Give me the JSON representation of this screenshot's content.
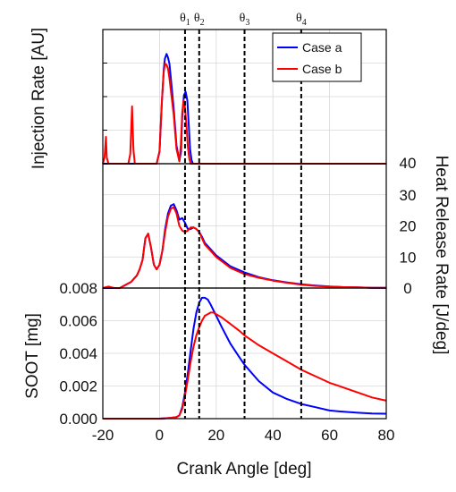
{
  "chart_data": [
    {
      "type": "line",
      "panel": "top",
      "ylabel": "Injection Rate [AU]",
      "y_axis_side": "left",
      "y_tick_labels_shown": false,
      "ylim": [
        0,
        1.1
      ],
      "xlim": [
        -20,
        80
      ],
      "grid": true,
      "legend": {
        "placement": "top-right",
        "entries": [
          "Case a",
          "Case b"
        ]
      },
      "series": [
        {
          "name": "Case a",
          "color": "#0000ff",
          "x": [
            -20,
            -19.4,
            -18.9,
            -18.6,
            -18,
            -17,
            -11,
            -10.3,
            -9.7,
            -9.2,
            -8.7,
            -8,
            -1,
            0,
            0.8,
            1.5,
            1.9,
            2.5,
            3,
            3.5,
            4,
            5,
            6,
            7,
            7.6,
            8,
            8.6,
            9.2,
            9.8,
            10.3,
            10.8,
            11.3,
            11.8,
            12,
            80
          ],
          "y": [
            0,
            0,
            0,
            0,
            0,
            0,
            0,
            0,
            0,
            0,
            0,
            0,
            0,
            0.1,
            0.48,
            0.78,
            0.86,
            0.9,
            0.87,
            0.82,
            0.7,
            0.45,
            0.15,
            0.02,
            0.1,
            0.38,
            0.56,
            0.59,
            0.52,
            0.32,
            0.12,
            0.03,
            0,
            0,
            0
          ]
        },
        {
          "name": "Case b",
          "color": "#ff0000",
          "x": [
            -20,
            -19.4,
            -18.9,
            -18.6,
            -18,
            -17,
            -11,
            -10.3,
            -9.7,
            -9.2,
            -8.7,
            -8,
            -1,
            0,
            0.8,
            1.5,
            2,
            2.5,
            3,
            3.5,
            4,
            5,
            6,
            7,
            7.5,
            8,
            8.5,
            9,
            9.5,
            10,
            10.5,
            11,
            80
          ],
          "y": [
            0,
            0.05,
            0.22,
            0.05,
            0,
            0,
            0,
            0.08,
            0.47,
            0.12,
            0,
            0,
            0,
            0.1,
            0.5,
            0.76,
            0.82,
            0.81,
            0.78,
            0.7,
            0.6,
            0.4,
            0.12,
            0.02,
            0.15,
            0.42,
            0.52,
            0.46,
            0.32,
            0.14,
            0.04,
            0,
            0
          ]
        }
      ]
    },
    {
      "type": "line",
      "panel": "middle",
      "ylabel": "Heat Release Rate [J/deg]",
      "y_axis_side": "right",
      "ylim": [
        0,
        40
      ],
      "yticks": [
        0,
        10,
        20,
        30,
        40
      ],
      "xlim": [
        -20,
        80
      ],
      "grid": true,
      "series": [
        {
          "name": "Case a",
          "color": "#0000ff",
          "x": [
            -20,
            -18,
            -16,
            -14,
            -12,
            -10,
            -8,
            -7,
            -6,
            -5,
            -4,
            -3,
            -2,
            -1,
            0,
            1,
            2,
            3,
            4,
            5,
            6,
            7,
            8,
            9,
            10,
            11,
            12,
            13,
            14,
            15,
            16,
            18,
            20,
            25,
            30,
            35,
            40,
            45,
            50,
            55,
            60,
            65,
            70,
            75,
            80
          ],
          "y": [
            0,
            0,
            0,
            0,
            1,
            2,
            4,
            6,
            9,
            16,
            17.5,
            13,
            7.5,
            6,
            7.5,
            12,
            19,
            24,
            26.5,
            27,
            25,
            22,
            22.5,
            21,
            19,
            19,
            19.5,
            19,
            18,
            16.5,
            14.5,
            12.5,
            10.5,
            7,
            5,
            3.5,
            2.5,
            1.8,
            1.2,
            0.8,
            0.5,
            0.3,
            0.2,
            0.1,
            0.05
          ]
        },
        {
          "name": "Case b",
          "color": "#ff0000",
          "x": [
            -20,
            -18,
            -16,
            -14,
            -12,
            -10,
            -8,
            -7,
            -6,
            -5,
            -4,
            -3,
            -2,
            -1,
            0,
            1,
            2,
            3,
            4,
            5,
            6,
            7,
            8,
            9,
            10,
            11,
            12,
            13,
            14,
            15,
            16,
            18,
            20,
            25,
            30,
            35,
            40,
            45,
            50,
            55,
            60,
            65,
            70,
            75,
            80
          ],
          "y": [
            0,
            0.5,
            0,
            0,
            1,
            2,
            4,
            6,
            9,
            16,
            17.5,
            13,
            7.5,
            6,
            7.5,
            12,
            18,
            23,
            25.5,
            26,
            24,
            20,
            18.5,
            18,
            18.5,
            19.5,
            19.5,
            19,
            18,
            16,
            14,
            12,
            10,
            6.5,
            4.5,
            3.3,
            2.4,
            1.7,
            1.1,
            0.7,
            0.45,
            0.3,
            0.2,
            0.1,
            0.05
          ]
        }
      ]
    },
    {
      "type": "line",
      "panel": "bottom",
      "xlabel": "Crank Angle [deg]",
      "ylabel": "SOOT [mg]",
      "y_axis_side": "left",
      "ylim": [
        0,
        0.008
      ],
      "yticks": [
        0,
        0.002,
        0.004,
        0.006,
        0.008
      ],
      "ytick_labels": [
        "0.000",
        "0.002",
        "0.004",
        "0.006",
        "0.008"
      ],
      "xlim": [
        -20,
        80
      ],
      "xticks": [
        -20,
        0,
        20,
        40,
        60,
        80
      ],
      "grid": true,
      "series": [
        {
          "name": "Case a",
          "color": "#0000ff",
          "x": [
            -20,
            -5,
            0,
            2,
            4,
            6,
            7,
            8,
            9,
            10,
            11,
            12,
            13,
            14,
            15,
            16,
            17,
            18,
            20,
            22,
            25,
            28,
            30,
            35,
            40,
            45,
            50,
            55,
            60,
            65,
            70,
            75,
            80
          ],
          "y": [
            0,
            0,
            0,
            2e-05,
            5e-05,
            0.0001,
            0.0002,
            0.0007,
            0.0016,
            0.0028,
            0.0042,
            0.0055,
            0.0065,
            0.0071,
            0.0074,
            0.0074,
            0.0073,
            0.007,
            0.0063,
            0.0056,
            0.0046,
            0.0038,
            0.0033,
            0.0023,
            0.0016,
            0.0012,
            0.0009,
            0.0007,
            0.0005,
            0.00042,
            0.00036,
            0.00032,
            0.0003
          ]
        },
        {
          "name": "Case b",
          "color": "#ff0000",
          "x": [
            -20,
            -5,
            0,
            2,
            4,
            6,
            7,
            8,
            9,
            10,
            11,
            12,
            13,
            14,
            15,
            16,
            17,
            18,
            19,
            20,
            22,
            25,
            28,
            30,
            35,
            40,
            45,
            50,
            55,
            60,
            65,
            70,
            75,
            80
          ],
          "y": [
            0,
            0,
            0,
            2e-05,
            5e-05,
            0.0001,
            0.0002,
            0.0006,
            0.0014,
            0.0024,
            0.0035,
            0.0044,
            0.0051,
            0.0056,
            0.006,
            0.0063,
            0.0064,
            0.0065,
            0.0065,
            0.0064,
            0.0062,
            0.0058,
            0.0054,
            0.0051,
            0.0045,
            0.004,
            0.0035,
            0.003,
            0.0026,
            0.0022,
            0.0019,
            0.0016,
            0.0013,
            0.0011
          ]
        }
      ]
    }
  ],
  "markers": [
    {
      "label": "θ1",
      "symbol": "θ",
      "sub": "1",
      "x": 9
    },
    {
      "label": "θ2",
      "symbol": "θ",
      "sub": "2",
      "x": 14
    },
    {
      "label": "θ3",
      "symbol": "θ",
      "sub": "3",
      "x": 30
    },
    {
      "label": "θ4",
      "symbol": "θ",
      "sub": "4",
      "x": 50
    }
  ],
  "colors": {
    "case_a": "#0000ff",
    "case_b": "#ff0000"
  }
}
